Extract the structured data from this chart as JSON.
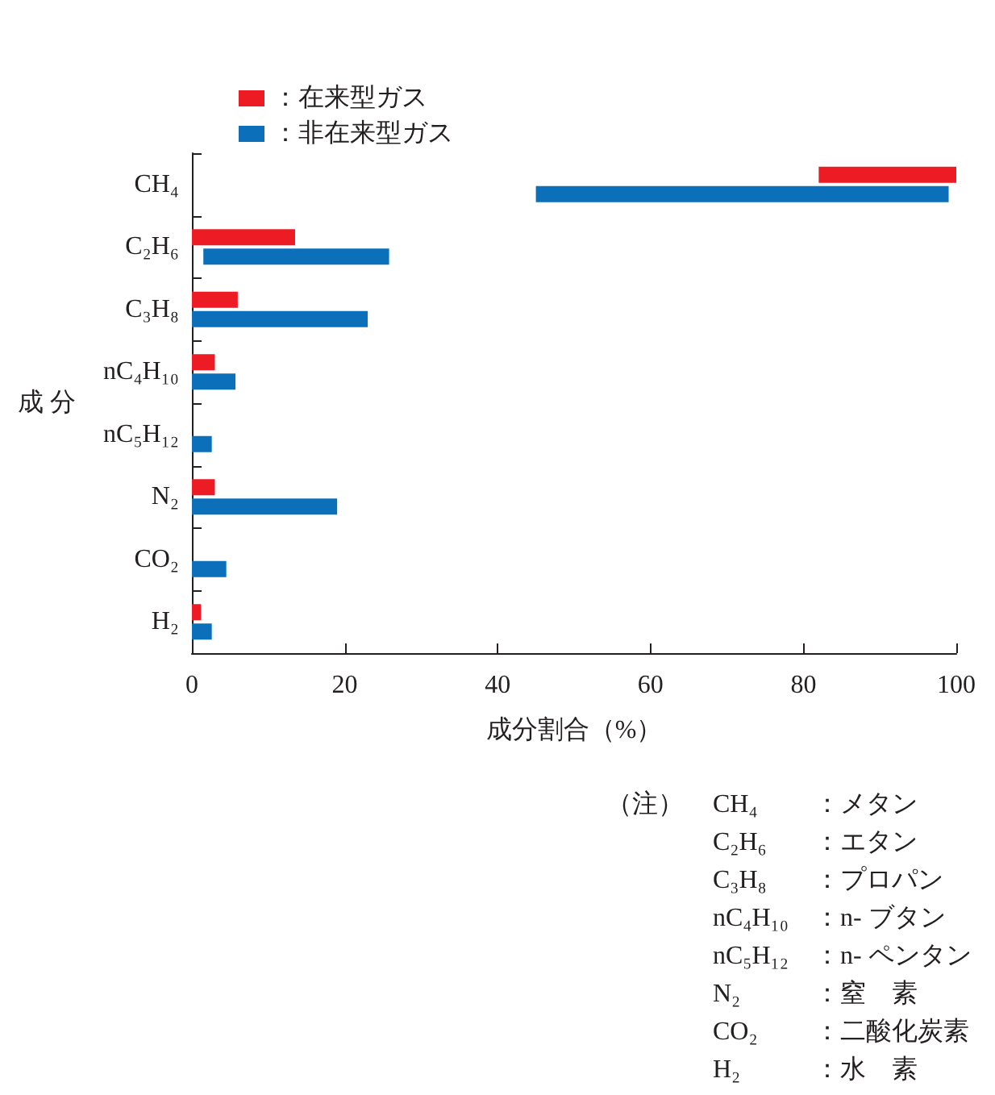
{
  "chart_data": {
    "type": "bar",
    "orientation": "horizontal",
    "xlabel": "成分割合（%）",
    "ylabel": "成 分",
    "categories": [
      "CH₄",
      "C₂H₆",
      "C₃H₈",
      "nC₄H₁₀",
      "nC₅H₁₂",
      "N₂",
      "CO₂",
      "H₂"
    ],
    "series": [
      {
        "name": "：在来型ガス",
        "color": "#ed1c24",
        "base": [
          82,
          0,
          0,
          0,
          null,
          0,
          null,
          0
        ],
        "values": [
          18,
          13.5,
          6,
          3,
          null,
          3,
          null,
          1.2
        ]
      },
      {
        "name": "：非在来型ガス",
        "color": "#0b6fba",
        "base": [
          45,
          1.5,
          0,
          0,
          0,
          0,
          0,
          0
        ],
        "values": [
          54,
          24.3,
          23,
          5.7,
          2.6,
          19,
          4.5,
          2.6
        ]
      }
    ],
    "xlim": [
      0,
      100
    ],
    "xticks": [
      0,
      20,
      40,
      60,
      80,
      100
    ],
    "grid": false,
    "legend": "top left",
    "annotations": [
      "（注）",
      "CH₄：メタン",
      "C₂H₆：エタン",
      "C₃H₈：プロパン",
      "nC₄H₁₀：n- ブタン",
      "nC₅H₁₂：n- ペンタン",
      "N₂：窒　素",
      "CO₂：二酸化炭素",
      "H₂：水　素"
    ]
  }
}
